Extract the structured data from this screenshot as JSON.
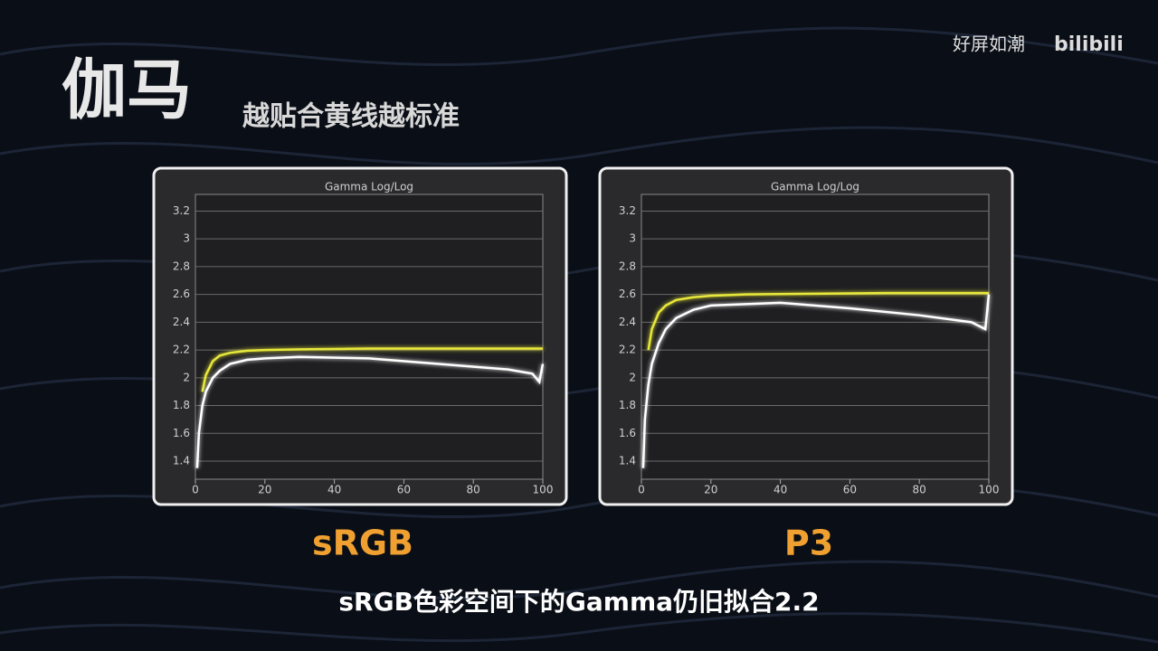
{
  "header": {
    "title": "伽马",
    "subtitle": "越贴合黄线越标准",
    "watermark": "好屏如潮",
    "logo": "bilibili"
  },
  "caption": "sRGB色彩空间下的Gamma仍旧拟合2.2",
  "chart_data": [
    {
      "type": "line",
      "title": "Gamma Log/Log",
      "label": "sRGB",
      "xlim": [
        0,
        100
      ],
      "xticks": [
        0,
        20,
        40,
        60,
        80,
        100
      ],
      "ylim": [
        1.27,
        3.32
      ],
      "yticks": [
        1.4,
        1.6,
        1.8,
        2,
        2.2,
        2.4,
        2.6,
        2.8,
        3,
        3.2
      ],
      "grid": true,
      "series": [
        {
          "color": "#e8e83a",
          "x": [
            2,
            3,
            5,
            7,
            10,
            15,
            20,
            30,
            50,
            70,
            100
          ],
          "values": [
            1.9,
            2.02,
            2.12,
            2.16,
            2.18,
            2.195,
            2.2,
            2.205,
            2.21,
            2.21,
            2.21
          ]
        },
        {
          "color": "#ffffff",
          "x": [
            0.5,
            1,
            2,
            3,
            5,
            7,
            10,
            15,
            20,
            30,
            50,
            70,
            90,
            97,
            99,
            100
          ],
          "values": [
            1.35,
            1.6,
            1.8,
            1.9,
            2.0,
            2.05,
            2.1,
            2.13,
            2.14,
            2.15,
            2.14,
            2.1,
            2.06,
            2.03,
            1.97,
            2.1
          ]
        }
      ]
    },
    {
      "type": "line",
      "title": "Gamma Log/Log",
      "label": "P3",
      "xlim": [
        0,
        100
      ],
      "xticks": [
        0,
        20,
        40,
        60,
        80,
        100
      ],
      "ylim": [
        1.27,
        3.32
      ],
      "yticks": [
        1.4,
        1.6,
        1.8,
        2,
        2.2,
        2.4,
        2.6,
        2.8,
        3,
        3.2
      ],
      "grid": true,
      "series": [
        {
          "color": "#e8e83a",
          "x": [
            2,
            3,
            5,
            7,
            10,
            15,
            20,
            30,
            50,
            70,
            100
          ],
          "values": [
            2.2,
            2.35,
            2.47,
            2.52,
            2.56,
            2.58,
            2.59,
            2.6,
            2.605,
            2.61,
            2.61
          ]
        },
        {
          "color": "#ffffff",
          "x": [
            0.5,
            1,
            2,
            3,
            5,
            7,
            10,
            15,
            20,
            40,
            60,
            80,
            95,
            99,
            100
          ],
          "values": [
            1.35,
            1.7,
            1.95,
            2.1,
            2.25,
            2.35,
            2.43,
            2.49,
            2.52,
            2.54,
            2.5,
            2.45,
            2.4,
            2.35,
            2.6
          ]
        }
      ]
    }
  ]
}
